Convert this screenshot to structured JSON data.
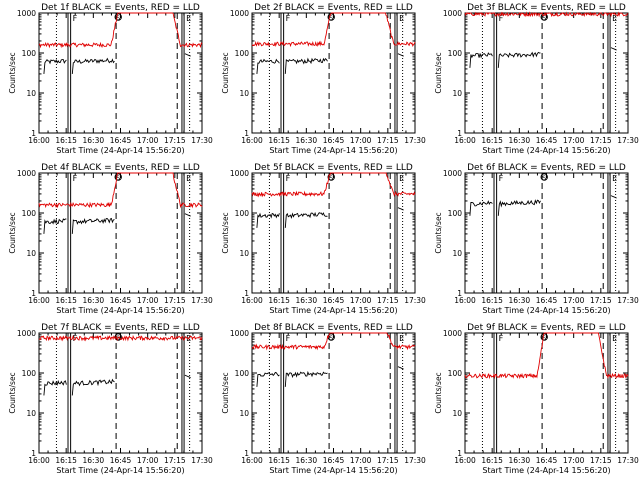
{
  "figure": {
    "common": {
      "ylabel": "Counts/sec",
      "xlabel": "Start Time (24-Apr-14 15:56:20)",
      "xticks": [
        "16:00",
        "16:15",
        "16:30",
        "16:45",
        "17:00",
        "17:15",
        "17:30"
      ],
      "yticks": [
        "1",
        "10",
        "100",
        "1000"
      ],
      "marker_letters": [
        "F",
        "S",
        "E"
      ],
      "colors": {
        "events": "#000000",
        "lld": "#e00000",
        "axis": "#000000"
      }
    },
    "panels": [
      {
        "title": "Det 1f BLACK = Events, RED = LLD",
        "events_level": 60,
        "lld_level": 160,
        "lld_peak": 1000,
        "lld_shape": "bump",
        "extra_dash_pre": true
      },
      {
        "title": "Det 2f BLACK = Events, RED = LLD",
        "events_level": 60,
        "lld_level": 170,
        "lld_peak": 1000,
        "lld_shape": "bump",
        "extra_dash_pre": true
      },
      {
        "title": "Det 3f BLACK = Events, RED = LLD",
        "events_level": 85,
        "lld_level": 950,
        "lld_peak": 1000,
        "lld_shape": "flat",
        "extra_dash_pre": false
      },
      {
        "title": "Det 4f BLACK = Events, RED = LLD",
        "events_level": 60,
        "lld_level": 160,
        "lld_peak": 1000,
        "lld_shape": "bump",
        "extra_dash_pre": true
      },
      {
        "title": "Det 5f BLACK = Events, RED = LLD",
        "events_level": 85,
        "lld_level": 300,
        "lld_peak": 1000,
        "lld_shape": "bump",
        "extra_dash_pre": true
      },
      {
        "title": "Det 6f BLACK = Events, RED = LLD",
        "events_level": 170,
        "lld_level": 0,
        "lld_peak": 0,
        "lld_shape": "none",
        "extra_dash_pre": false
      },
      {
        "title": "Det 7f BLACK = Events, RED = LLD",
        "events_level": 55,
        "lld_level": 750,
        "lld_peak": 750,
        "lld_shape": "flat",
        "extra_dash_pre": true
      },
      {
        "title": "Det 8f BLACK = Events, RED = LLD",
        "events_level": 90,
        "lld_level": 450,
        "lld_peak": 1000,
        "lld_shape": "bump",
        "extra_dash_pre": true
      },
      {
        "title": "Det 9f BLACK = Events, RED = LLD",
        "events_level": 0,
        "lld_level": 85,
        "lld_peak": 1000,
        "lld_shape": "bump",
        "extra_dash_pre": true
      }
    ]
  },
  "chart_data": [
    {
      "type": "line",
      "title": "Det 1f BLACK = Events, RED = LLD",
      "ylabel": "Counts/sec",
      "xlabel": "Start Time (24-Apr-14 15:56:20)",
      "yscale": "log",
      "ylim": [
        1,
        1000
      ],
      "xlim": [
        "16:00",
        "17:30"
      ],
      "series": [
        {
          "name": "Events",
          "color": "#000000",
          "typical": 60
        },
        {
          "name": "LLD",
          "color": "#e00000",
          "typical": 160
        }
      ]
    },
    {
      "type": "line",
      "title": "Det 2f BLACK = Events, RED = LLD",
      "ylabel": "Counts/sec",
      "xlabel": "Start Time (24-Apr-14 15:56:20)",
      "yscale": "log",
      "ylim": [
        1,
        1000
      ],
      "xlim": [
        "16:00",
        "17:30"
      ],
      "series": [
        {
          "name": "Events",
          "color": "#000000",
          "typical": 60
        },
        {
          "name": "LLD",
          "color": "#e00000",
          "typical": 170
        }
      ]
    },
    {
      "type": "line",
      "title": "Det 3f BLACK = Events, RED = LLD",
      "ylabel": "Counts/sec",
      "xlabel": "Start Time (24-Apr-14 15:56:20)",
      "yscale": "log",
      "ylim": [
        1,
        1000
      ],
      "xlim": [
        "16:00",
        "17:30"
      ],
      "series": [
        {
          "name": "Events",
          "color": "#000000",
          "typical": 85
        },
        {
          "name": "LLD",
          "color": "#e00000",
          "typical": 950
        }
      ]
    },
    {
      "type": "line",
      "title": "Det 4f BLACK = Events, RED = LLD",
      "ylabel": "Counts/sec",
      "xlabel": "Start Time (24-Apr-14 15:56:20)",
      "yscale": "log",
      "ylim": [
        1,
        1000
      ],
      "xlim": [
        "16:00",
        "17:30"
      ],
      "series": [
        {
          "name": "Events",
          "color": "#000000",
          "typical": 60
        },
        {
          "name": "LLD",
          "color": "#e00000",
          "typical": 160
        }
      ]
    },
    {
      "type": "line",
      "title": "Det 5f BLACK = Events, RED = LLD",
      "ylabel": "Counts/sec",
      "xlabel": "Start Time (24-Apr-14 15:56:20)",
      "yscale": "log",
      "ylim": [
        1,
        1000
      ],
      "xlim": [
        "16:00",
        "17:30"
      ],
      "series": [
        {
          "name": "Events",
          "color": "#000000",
          "typical": 85
        },
        {
          "name": "LLD",
          "color": "#e00000",
          "typical": 300
        }
      ]
    },
    {
      "type": "line",
      "title": "Det 6f BLACK = Events, RED = LLD",
      "ylabel": "Counts/sec",
      "xlabel": "Start Time (24-Apr-14 15:56:20)",
      "yscale": "log",
      "ylim": [
        1,
        1000
      ],
      "xlim": [
        "16:00",
        "17:30"
      ],
      "series": [
        {
          "name": "Events",
          "color": "#000000",
          "typical": 170
        }
      ]
    },
    {
      "type": "line",
      "title": "Det 7f BLACK = Events, RED = LLD",
      "ylabel": "Counts/sec",
      "xlabel": "Start Time (24-Apr-14 15:56:20)",
      "yscale": "log",
      "ylim": [
        1,
        1000
      ],
      "xlim": [
        "16:00",
        "17:30"
      ],
      "series": [
        {
          "name": "Events",
          "color": "#000000",
          "typical": 55
        },
        {
          "name": "LLD",
          "color": "#e00000",
          "typical": 750
        }
      ]
    },
    {
      "type": "line",
      "title": "Det 8f BLACK = Events, RED = LLD",
      "ylabel": "Counts/sec",
      "xlabel": "Start Time (24-Apr-14 15:56:20)",
      "yscale": "log",
      "ylim": [
        1,
        1000
      ],
      "xlim": [
        "16:00",
        "17:30"
      ],
      "series": [
        {
          "name": "Events",
          "color": "#000000",
          "typical": 90
        },
        {
          "name": "LLD",
          "color": "#e00000",
          "typical": 450
        }
      ]
    },
    {
      "type": "line",
      "title": "Det 9f BLACK = Events, RED = LLD",
      "ylabel": "Counts/sec",
      "xlabel": "Start Time (24-Apr-14 15:56:20)",
      "yscale": "log",
      "ylim": [
        1,
        1000
      ],
      "xlim": [
        "16:00",
        "17:30"
      ],
      "series": [
        {
          "name": "LLD",
          "color": "#e00000",
          "typical": 85
        }
      ]
    }
  ]
}
